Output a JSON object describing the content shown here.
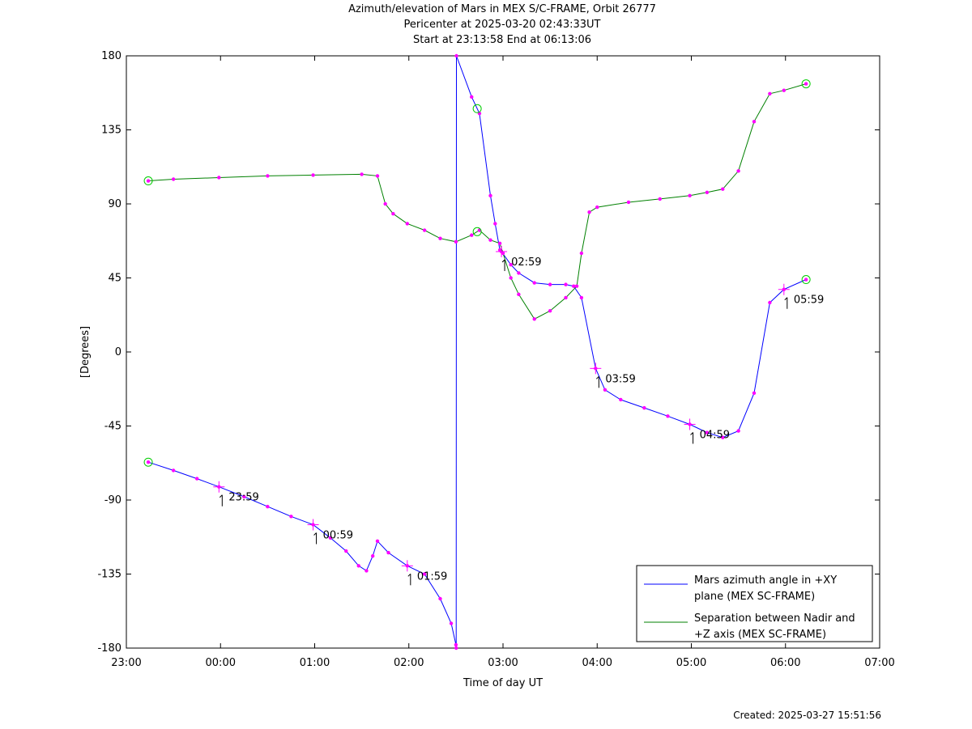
{
  "chart_data": {
    "type": "line",
    "title_lines": [
      "Azimuth/elevation of Mars in MEX S/C-FRAME,  Orbit 26777",
      "Pericenter at 2025-03-20 02:43:33UT",
      "Start at 23:13:58 End at 06:13:06"
    ],
    "xlabel": "Time of day UT",
    "ylabel": "[Degrees]",
    "xlim": [
      "23:00",
      "07:00"
    ],
    "ylim": [
      -180,
      180
    ],
    "x_ticks": [
      "23:00",
      "00:00",
      "01:00",
      "02:00",
      "03:00",
      "04:00",
      "05:00",
      "06:00",
      "07:00"
    ],
    "y_ticks": [
      180,
      135,
      90,
      45,
      0,
      -45,
      -90,
      -135,
      -180
    ],
    "legend_position": "bottom-right",
    "series": [
      {
        "name": "Mars azimuth angle in +XY plane (MEX SC-FRAME)",
        "color": "#0000ff",
        "points": [
          [
            "23:13:58",
            -67
          ],
          [
            "23:30",
            -72
          ],
          [
            "23:45",
            -77
          ],
          [
            "23:59",
            -82
          ],
          [
            "00:15",
            -88
          ],
          [
            "00:30",
            -94
          ],
          [
            "00:45",
            -100
          ],
          [
            "00:59",
            -105
          ],
          [
            "01:10",
            -113
          ],
          [
            "01:20",
            -121
          ],
          [
            "01:28",
            -130
          ],
          [
            "01:33",
            -133
          ],
          [
            "01:37",
            -124
          ],
          [
            "01:40",
            -115
          ],
          [
            "01:47",
            -122
          ],
          [
            "01:59",
            -130
          ],
          [
            "02:10",
            -135
          ],
          [
            "02:20",
            -150
          ],
          [
            "02:27",
            -165
          ],
          [
            "02:30",
            -178
          ],
          [
            "02:30:10",
            -180
          ],
          [
            "02:30:20",
            180
          ],
          [
            "02:40",
            155
          ],
          [
            "02:45",
            145
          ],
          [
            "02:52",
            95
          ],
          [
            "02:55",
            78
          ],
          [
            "02:58",
            62
          ],
          [
            "02:59",
            61
          ],
          [
            "03:05",
            53
          ],
          [
            "03:10",
            48
          ],
          [
            "03:20",
            42
          ],
          [
            "03:30",
            41
          ],
          [
            "03:40",
            41
          ],
          [
            "03:45",
            40
          ],
          [
            "03:50",
            33
          ],
          [
            "03:59",
            -10
          ],
          [
            "04:05",
            -23
          ],
          [
            "04:15",
            -29
          ],
          [
            "04:30",
            -34
          ],
          [
            "04:45",
            -39
          ],
          [
            "04:59",
            -44
          ],
          [
            "05:10",
            -49
          ],
          [
            "05:20",
            -52
          ],
          [
            "05:30",
            -48
          ],
          [
            "05:40",
            -25
          ],
          [
            "05:50",
            30
          ],
          [
            "05:59",
            38
          ],
          [
            "06:13:06",
            44
          ]
        ]
      },
      {
        "name": "Separation between Nadir and +Z axis (MEX SC-FRAME)",
        "color": "#008000",
        "points": [
          [
            "23:13:58",
            104
          ],
          [
            "23:30",
            105
          ],
          [
            "23:59",
            106
          ],
          [
            "00:30",
            107
          ],
          [
            "00:59",
            107.5
          ],
          [
            "01:30",
            108
          ],
          [
            "01:40",
            107
          ],
          [
            "01:45",
            90
          ],
          [
            "01:50",
            84
          ],
          [
            "01:59",
            78
          ],
          [
            "02:10",
            74
          ],
          [
            "02:20",
            69
          ],
          [
            "02:30",
            67
          ],
          [
            "02:40",
            71
          ],
          [
            "02:45",
            74
          ],
          [
            "02:52",
            68
          ],
          [
            "02:58",
            66
          ],
          [
            "03:00",
            60
          ],
          [
            "03:05",
            45
          ],
          [
            "03:10",
            35
          ],
          [
            "03:20",
            20
          ],
          [
            "03:30",
            25
          ],
          [
            "03:40",
            33
          ],
          [
            "03:47",
            40
          ],
          [
            "03:50",
            60
          ],
          [
            "03:55",
            85
          ],
          [
            "04:00",
            88
          ],
          [
            "04:20",
            91
          ],
          [
            "04:40",
            93
          ],
          [
            "04:59",
            95
          ],
          [
            "05:10",
            97
          ],
          [
            "05:20",
            99
          ],
          [
            "05:30",
            110
          ],
          [
            "05:40",
            140
          ],
          [
            "05:50",
            157
          ],
          [
            "05:59",
            159
          ],
          [
            "06:13:06",
            163
          ]
        ]
      }
    ],
    "markers": [
      {
        "time": "23:13:58",
        "series": 0,
        "shape": "circle"
      },
      {
        "time": "06:13:06",
        "series": 0,
        "shape": "circle"
      },
      {
        "time": "23:13:58",
        "series": 1,
        "shape": "circle"
      },
      {
        "time": "06:13:06",
        "series": 1,
        "shape": "circle"
      },
      {
        "time": "02:43:33",
        "series": 0,
        "shape": "circle"
      },
      {
        "time": "02:43:33",
        "series": 1,
        "shape": "circle"
      }
    ],
    "annotations": [
      {
        "label": "23:59",
        "time": "23:59",
        "value": -82
      },
      {
        "label": "00:59",
        "time": "00:59",
        "value": -105
      },
      {
        "label": "01:59",
        "time": "01:59",
        "value": -130
      },
      {
        "label": "02:59",
        "time": "02:59",
        "value": 61
      },
      {
        "label": "03:59",
        "time": "03:59",
        "value": -10
      },
      {
        "label": "04:59",
        "time": "04:59",
        "value": -44
      },
      {
        "label": "05:59",
        "time": "05:59",
        "value": 38
      }
    ]
  },
  "footer": {
    "created": "Created: 2025-03-27 15:51:56"
  }
}
